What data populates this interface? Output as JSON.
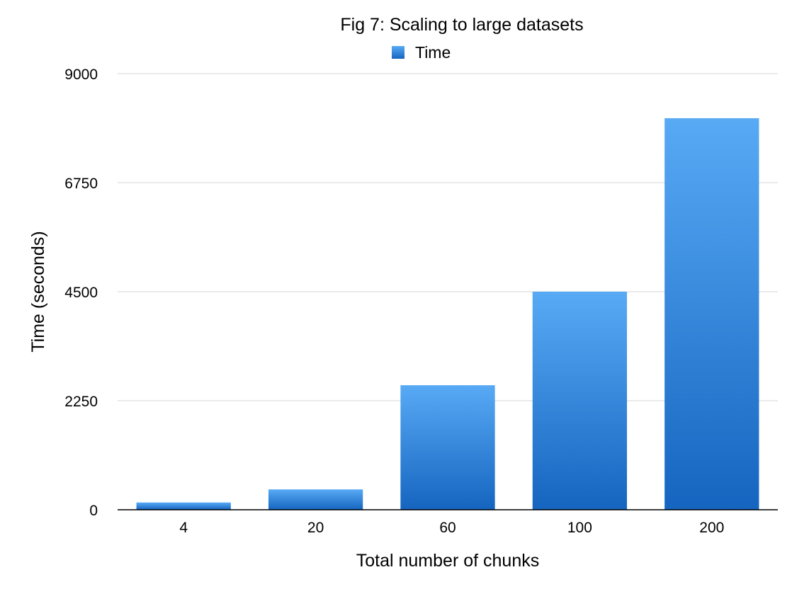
{
  "chart_data": {
    "type": "bar",
    "title": "Fig 7: Scaling to large datasets",
    "xlabel": "Total number of chunks",
    "ylabel": "Time (seconds)",
    "categories": [
      "4",
      "20",
      "60",
      "100",
      "200"
    ],
    "series": [
      {
        "name": "Time",
        "values": [
          150,
          420,
          2570,
          4500,
          8080
        ],
        "color": "#2f86dc"
      }
    ],
    "ylim": [
      0,
      9000
    ],
    "yticks": [
      0,
      2250,
      4500,
      6750,
      9000
    ],
    "grid": true,
    "legend": "top-center"
  },
  "colors": {
    "bar_top": "#58aaf5",
    "bar_bottom": "#1565c0",
    "grid": "#d6d6d6",
    "axis": "#000000"
  }
}
